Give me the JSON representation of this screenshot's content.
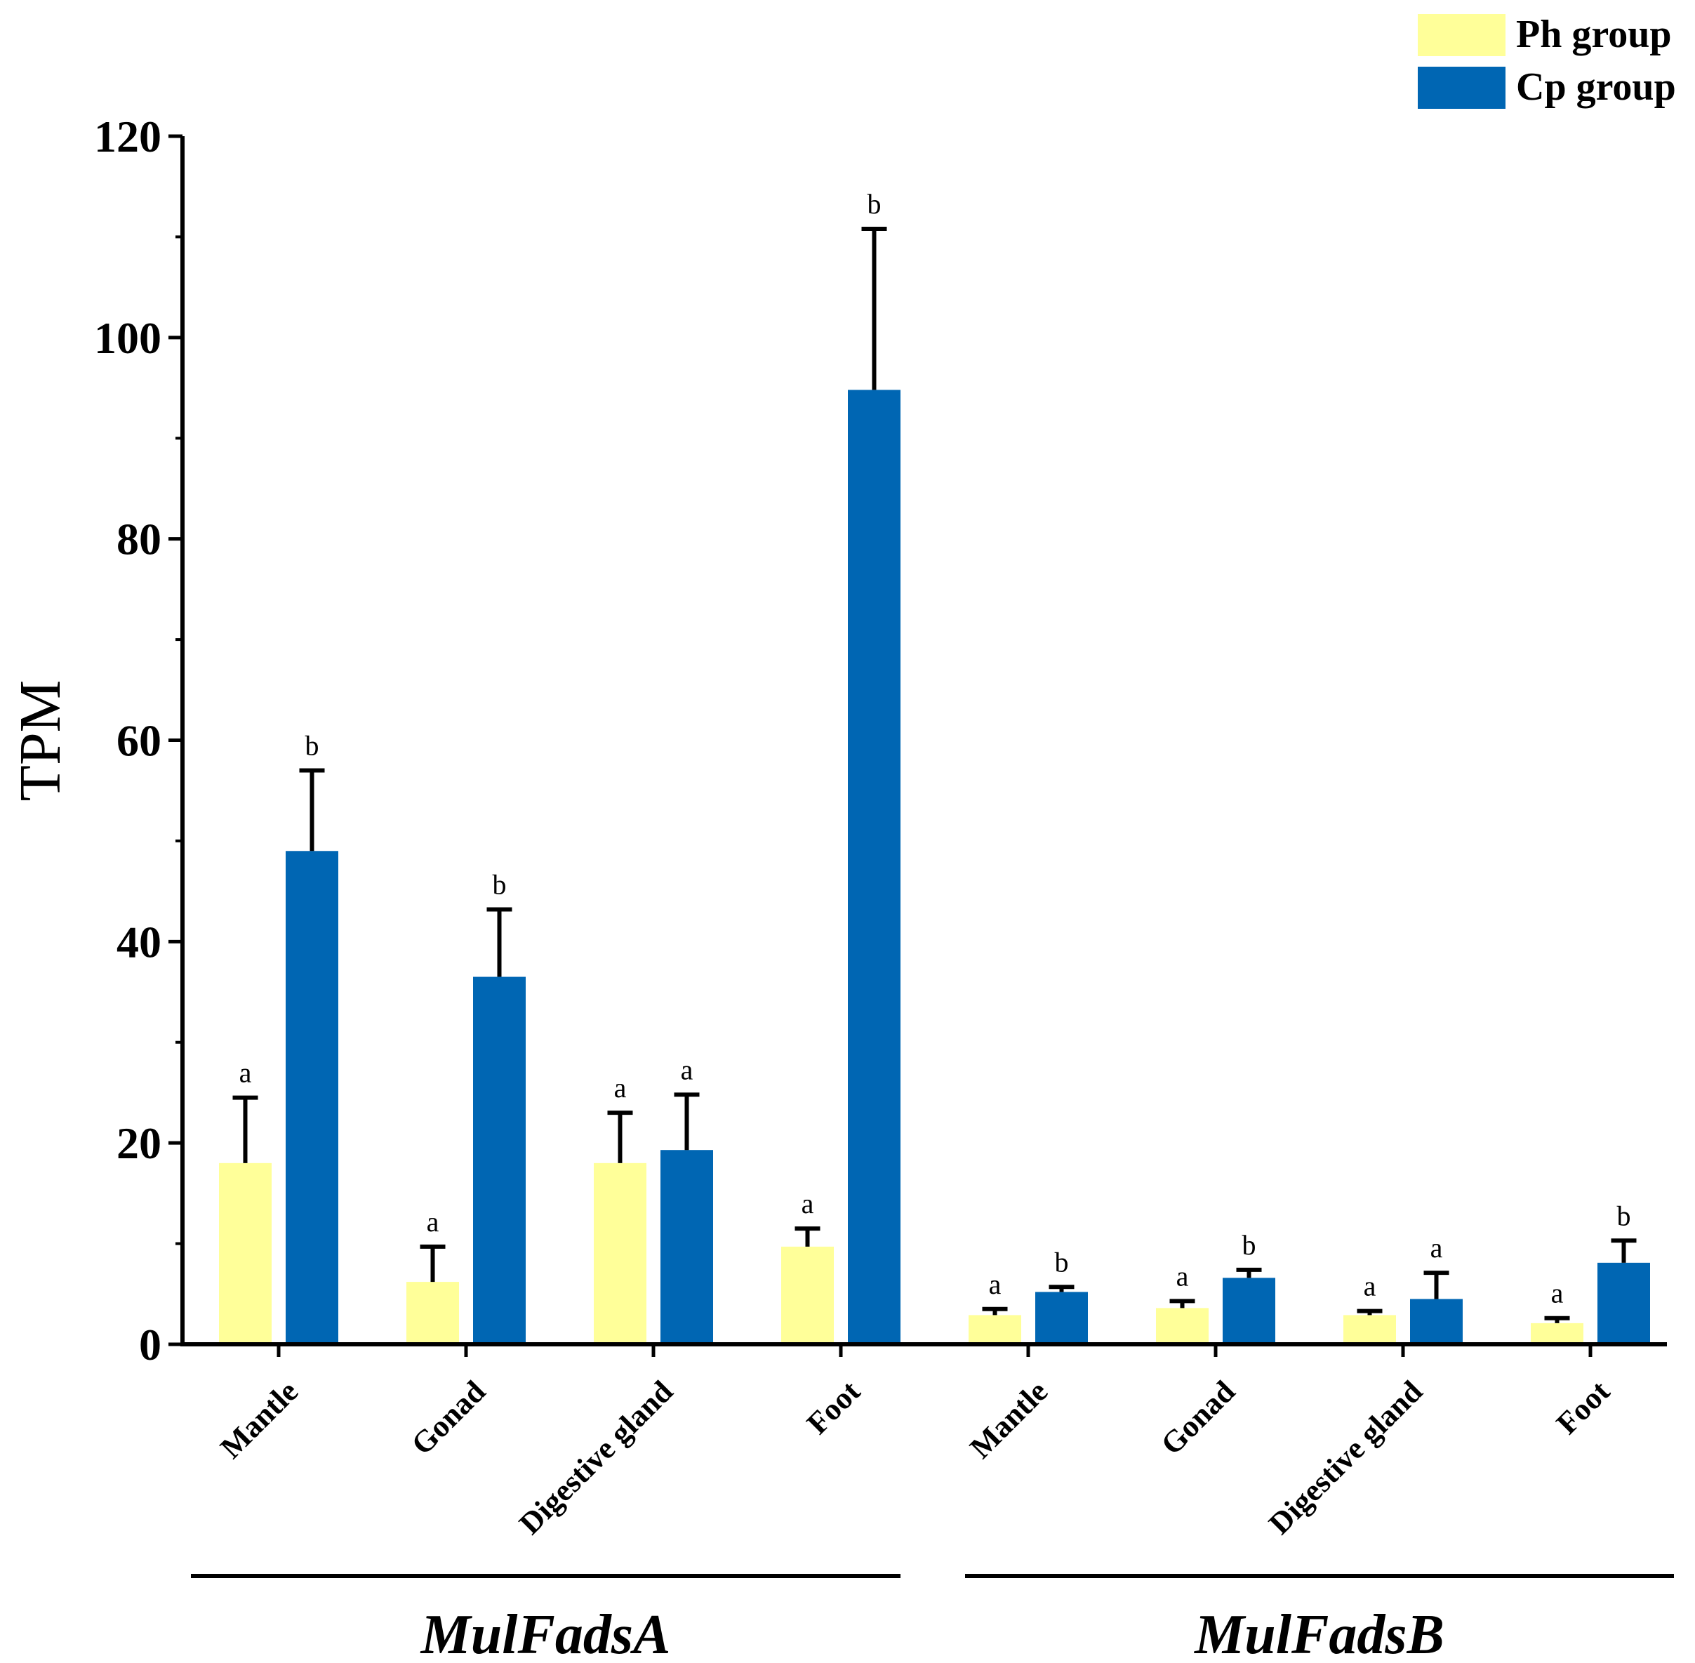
{
  "chart_data": {
    "type": "bar",
    "ylabel": "TPM",
    "ylim": [
      0,
      120
    ],
    "yticks": [
      "0",
      "20",
      "40",
      "60",
      "80",
      "100",
      "120"
    ],
    "groups": [
      {
        "label": "MulFadsA",
        "categories": [
          "Mantle",
          "Gonad",
          "Digestive gland",
          "Foot"
        ]
      },
      {
        "label": "MulFadsB",
        "categories": [
          "Mantle",
          "Gonad",
          "Digestive gland",
          "Foot"
        ]
      }
    ],
    "series": [
      {
        "name": "Ph group",
        "color": "#FFFF99",
        "values": [
          18.0,
          6.2,
          18.0,
          9.7,
          2.9,
          3.6,
          2.9,
          2.1
        ],
        "errors": [
          6.5,
          3.5,
          5.0,
          1.8,
          0.6,
          0.7,
          0.4,
          0.5
        ],
        "labels": [
          "a",
          "a",
          "a",
          "a",
          "a",
          "a",
          "a",
          "a"
        ]
      },
      {
        "name": "Cp group",
        "color": "#0066B3",
        "values": [
          49.0,
          36.5,
          19.3,
          94.8,
          5.2,
          6.6,
          4.5,
          8.1
        ],
        "errors": [
          8.0,
          6.7,
          5.5,
          16.0,
          0.5,
          0.8,
          2.6,
          2.2
        ],
        "labels": [
          "b",
          "b",
          "a",
          "b",
          "b",
          "b",
          "a",
          "b"
        ]
      }
    ]
  }
}
